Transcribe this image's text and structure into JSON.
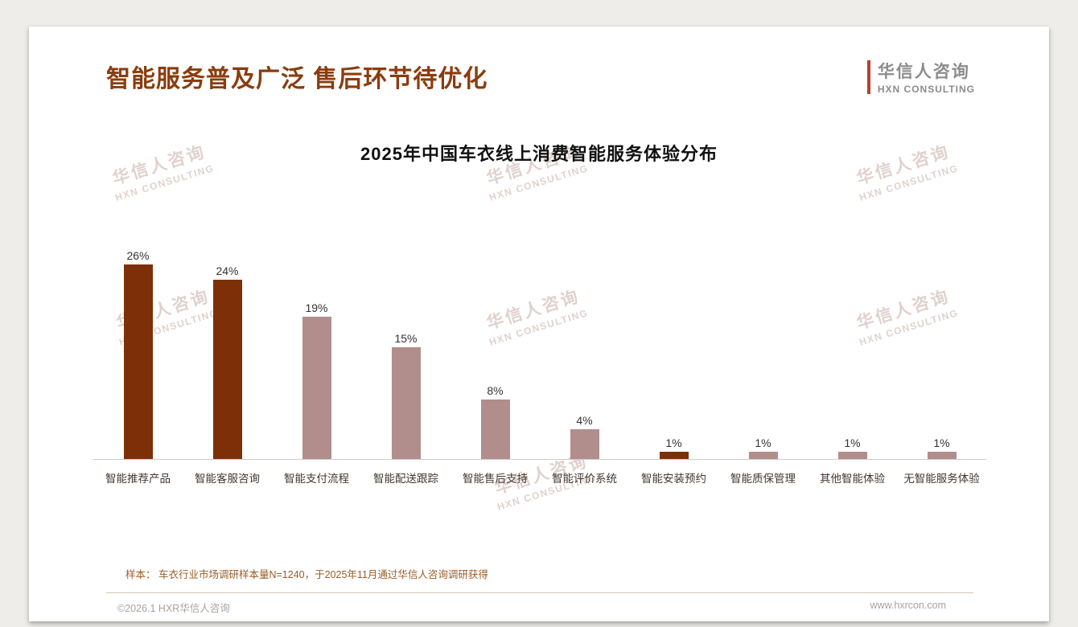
{
  "header": {
    "title": "智能服务普及广泛 售后环节待优化",
    "logo": {
      "name": "华信人咨询",
      "subtitle": "HXN CONSULTING"
    }
  },
  "watermark": {
    "line1": "华信人咨询",
    "line2": "HXN CONSULTING"
  },
  "chart_data": {
    "type": "bar",
    "title": "2025年中国车衣线上消费智能服务体验分布",
    "categories": [
      "智能推荐产品",
      "智能客服咨询",
      "智能支付流程",
      "智能配送跟踪",
      "智能售后支持",
      "智能评价系统",
      "智能安装预约",
      "智能质保管理",
      "其他智能体验",
      "无智能服务体验"
    ],
    "values": [
      26,
      24,
      19,
      15,
      8,
      4,
      1,
      1,
      1,
      1
    ],
    "value_labels": [
      "26%",
      "24%",
      "19%",
      "15%",
      "8%",
      "4%",
      "1%",
      "1%",
      "1%",
      "1%"
    ],
    "bar_colors": [
      "#7d3008",
      "#7d3008",
      "#b18d8b",
      "#b18d8b",
      "#b18d8b",
      "#b18d8b",
      "#7d3008",
      "#b18d8b",
      "#b18d8b",
      "#b18d8b"
    ],
    "xlabel": "",
    "ylabel": "",
    "ylim": [
      0,
      28
    ],
    "grid": false,
    "legend": "none"
  },
  "footnote": "样本： 车衣行业市场调研样本量N=1240，于2025年11月通过华信人咨询调研获得",
  "footer": {
    "copyright": "©2026.1 HXR华信人咨询",
    "website": "www.hxrcon.com"
  },
  "colors": {
    "title_brown": "#8b3c0e",
    "bar_dark": "#7d3008",
    "bar_light": "#b18d8b",
    "logo_accent": "#b8402c",
    "footnote_brown": "#9a5c28"
  }
}
